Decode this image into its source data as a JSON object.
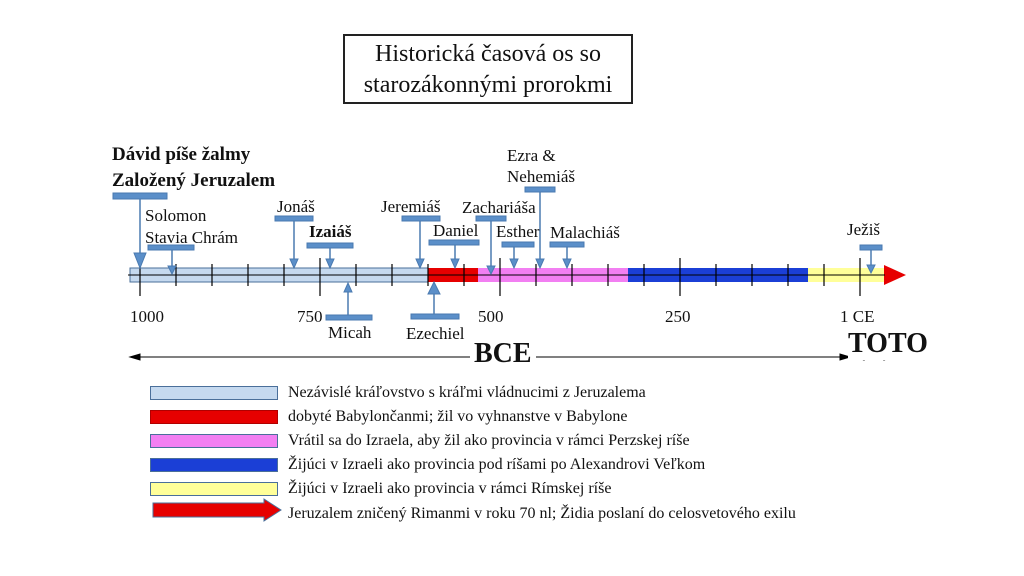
{
  "title": {
    "line1": "Historická časová os so",
    "line2": "starozákonnými prorokmi"
  },
  "axis": {
    "tick_labels": [
      "1000",
      "750",
      "500",
      "250",
      "1 CE"
    ]
  },
  "eras": {
    "bce": "BCE",
    "ce": "TOTO"
  },
  "events": {
    "david_line1": "Dávid píše žalmy",
    "david_line2": "Založený Jeruzalem",
    "solomon_line1": "Solomon",
    "solomon_line2": "Stavia Chrám",
    "jonas": "Jonáš",
    "izaias": "Izaiáš",
    "micah": "Micah",
    "jeremias": "Jeremiáš",
    "ezechiel": "Ezechiel",
    "daniel": "Daniel",
    "zachariasa": "Zachariáša",
    "ezra_line1": "Ezra &",
    "ezra_line2": "Nehemiáš",
    "esther": "Esther",
    "malachias": "Malachiáš",
    "jezis": "Ježiš"
  },
  "legend": [
    {
      "color": "#c5d9ef",
      "text": "Nezávislé kráľovstvo s kráľmi vládnucimi z Jeruzalema"
    },
    {
      "color": "#e60000",
      "text": "dobyté Babylončanmi; žil vo vyhnanstve v Babylone"
    },
    {
      "color": "#f27ff2",
      "text": "Vrátil sa do Izraela, aby žil ako provincia v rámci Perzskej ríše"
    },
    {
      "color": "#1b3fd6",
      "text": "Žijúci v Izraeli ako provincia pod ríšami po Alexandrovi Veľkom"
    },
    {
      "color": "#ffff99",
      "text": "Žijúci v Izraeli ako provincia v rámci Rímskej ríše"
    },
    {
      "color": "#e60000",
      "text": "Jeruzalem zničený Rimanmi v roku 70 nl; Židia poslaní do celosvetového exilu",
      "arrow": true
    }
  ],
  "colors": {
    "marker": "#5b8fc9",
    "kingdom": "#c5d9ef",
    "exile": "#e60000",
    "persian": "#f27ff2",
    "greek": "#1b3fd6",
    "roman": "#ffff99"
  }
}
